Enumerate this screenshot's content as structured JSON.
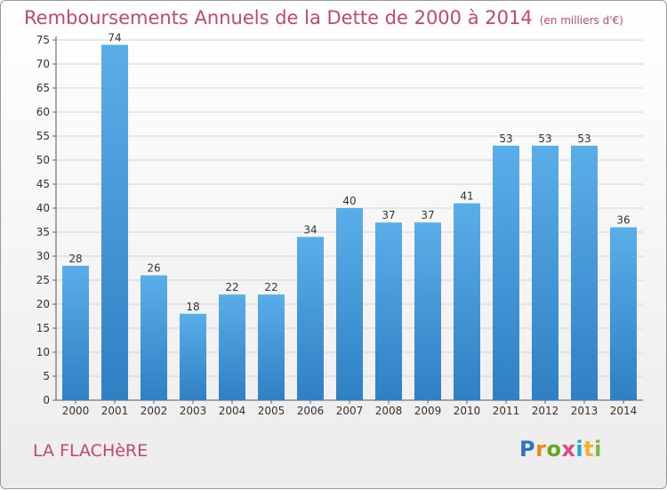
{
  "chart_data": {
    "type": "bar",
    "title": "Remboursements Annuels de la Dette de 2000 à 2014",
    "subtitle": "(en milliers d'€)",
    "categories": [
      "2000",
      "2001",
      "2002",
      "2003",
      "2004",
      "2005",
      "2006",
      "2007",
      "2008",
      "2009",
      "2010",
      "2011",
      "2012",
      "2013",
      "2014"
    ],
    "values": [
      28,
      74,
      26,
      18,
      22,
      22,
      34,
      40,
      37,
      37,
      41,
      53,
      53,
      53,
      36
    ],
    "ylim": [
      0,
      75
    ],
    "yticks": [
      0,
      5,
      10,
      15,
      20,
      25,
      30,
      35,
      40,
      45,
      50,
      55,
      60,
      65,
      70,
      75
    ],
    "grid": true,
    "bar_color": "#4c9fe0"
  },
  "place_name": "LA FLACHèRE",
  "logo": {
    "text": "Proxiti",
    "colors": [
      "#2d73c4",
      "#e8891d",
      "#6aa524",
      "#d94a8c",
      "#1fa8c9",
      "#f0b323",
      "#7ab83c"
    ]
  }
}
